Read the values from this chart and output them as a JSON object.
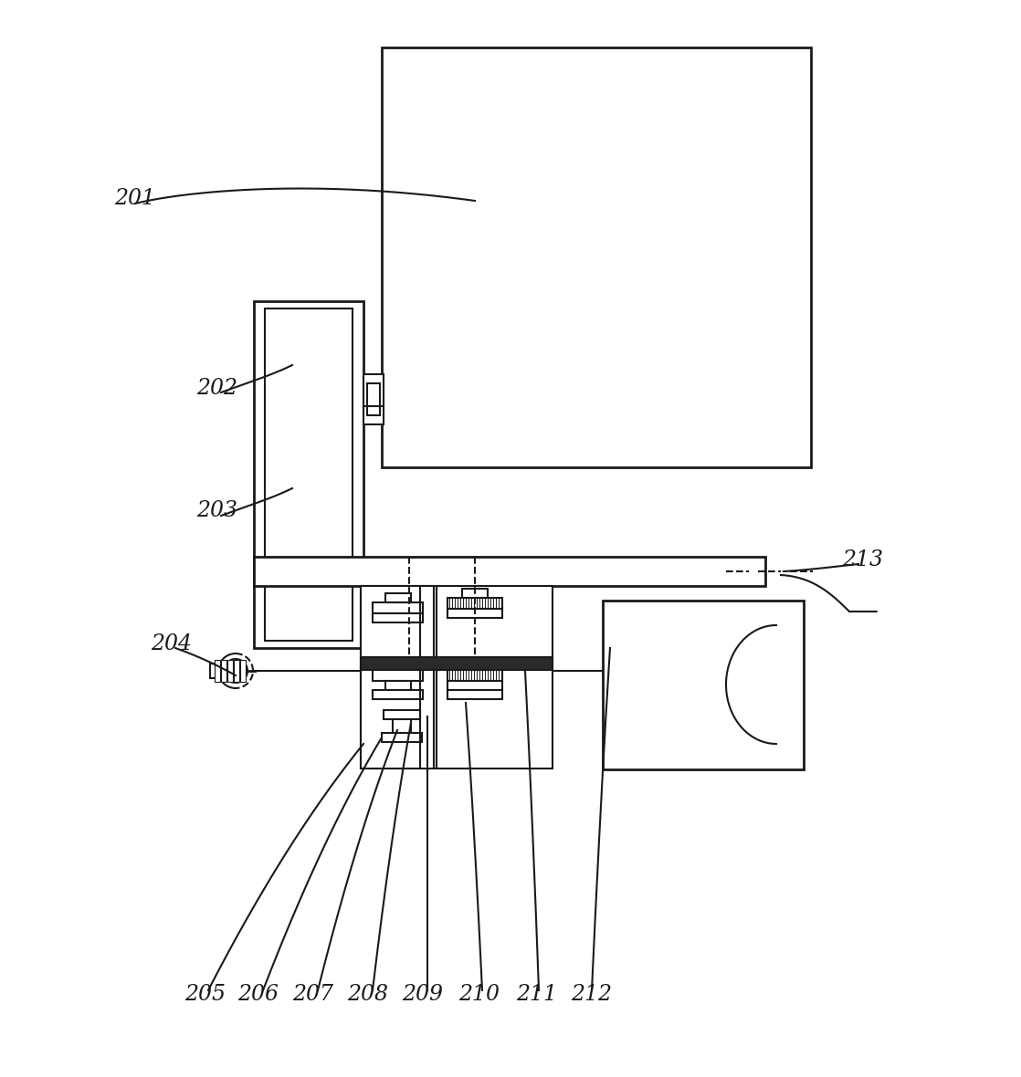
{
  "bg_color": "#ffffff",
  "line_color": "#1a1a1a",
  "lw": 1.5,
  "lw2": 2.0,
  "font_size": 17
}
